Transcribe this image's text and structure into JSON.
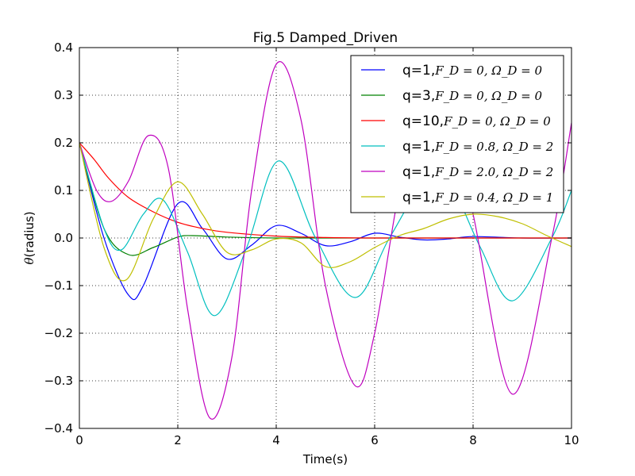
{
  "chart_data": {
    "type": "line",
    "title": "Fig.5 Damped_Driven",
    "xlabel": "Time(s)",
    "ylabel_symbol": "θ",
    "ylabel_text": "(radius)",
    "xlim": [
      0,
      10
    ],
    "ylim": [
      -0.4,
      0.4
    ],
    "xticks": [
      0,
      2,
      4,
      6,
      8,
      10
    ],
    "xtick_labels": [
      "0",
      "2",
      "4",
      "6",
      "8",
      "10"
    ],
    "yticks": [
      -0.4,
      -0.3,
      -0.2,
      -0.1,
      0.0,
      0.1,
      0.2,
      0.3,
      0.4
    ],
    "ytick_labels": [
      "−0.4",
      "−0.3",
      "−0.2",
      "−0.1",
      "0.0",
      "0.1",
      "0.2",
      "0.3",
      "0.4"
    ],
    "grid": true,
    "legend_position": "top-right",
    "series": [
      {
        "name": "q=1,F_D=0,Ω_D=0",
        "label_prefix": "q=1,",
        "label_math": "F_D = 0, Ω_D = 0",
        "color": "#0000ff",
        "x": [
          0,
          0.5,
          1.0,
          1.3,
          2.0,
          2.5,
          3.0,
          3.5,
          4.0,
          4.5,
          5.0,
          5.5,
          6.0,
          6.5,
          7.0,
          7.5,
          8.0,
          9.0,
          10.0
        ],
        "y": [
          0.2,
          0.0,
          -0.12,
          -0.1,
          0.072,
          0.02,
          -0.044,
          -0.015,
          0.026,
          0.01,
          -0.016,
          -0.008,
          0.01,
          0.002,
          -0.004,
          -0.002,
          0.003,
          0.0,
          0.0
        ]
      },
      {
        "name": "q=3,F_D=0,Ω_D=0",
        "label_prefix": "q=3,",
        "label_math": "F_D = 0, Ω_D = 0",
        "color": "#008000",
        "x": [
          0,
          0.5,
          1.0,
          1.5,
          2.0,
          2.3,
          3.0,
          4.0,
          5.0,
          10.0
        ],
        "y": [
          0.2,
          0.02,
          -0.035,
          -0.02,
          0.002,
          0.005,
          0.002,
          0.0,
          0.0,
          0.0
        ]
      },
      {
        "name": "q=10,F_D=0,Ω_D=0",
        "label_prefix": "q=10,",
        "label_math": "F_D = 0, Ω_D = 0",
        "color": "#ff0000",
        "x": [
          0,
          0.3,
          0.6,
          1.0,
          1.5,
          2.0,
          2.5,
          3.0,
          4.0,
          5.0,
          6.0,
          8.0,
          10.0
        ],
        "y": [
          0.2,
          0.165,
          0.125,
          0.085,
          0.055,
          0.033,
          0.02,
          0.012,
          0.004,
          0.001,
          0.0,
          0.0,
          0.0
        ]
      },
      {
        "name": "q=1,F_D=0.8,Ω_D=2",
        "label_prefix": "q=1,",
        "label_math": "F_D = 0.8, Ω_D = 2",
        "color": "#00bfbf",
        "x": [
          0,
          0.5,
          0.85,
          1.3,
          1.7,
          2.2,
          2.75,
          3.4,
          4.05,
          4.8,
          5.6,
          6.3,
          7.1,
          7.6,
          8.15,
          8.8,
          9.6,
          10.0
        ],
        "y": [
          0.2,
          0.02,
          -0.025,
          0.05,
          0.08,
          -0.03,
          -0.163,
          -0.02,
          0.162,
          0.0,
          -0.125,
          0.0,
          0.13,
          0.1,
          -0.02,
          -0.132,
          0.0,
          0.1
        ]
      },
      {
        "name": "q=1,F_D=2.0,Ω_D=2",
        "label_prefix": "q=1,",
        "label_math": "F_D = 2.0, Ω_D = 2",
        "color": "#bf00bf",
        "x": [
          0,
          0.35,
          0.65,
          1.0,
          1.4,
          1.8,
          2.2,
          2.65,
          3.1,
          3.5,
          4.0,
          4.5,
          5.0,
          5.6,
          6.0,
          6.5,
          7.0,
          7.5,
          8.0,
          8.8,
          9.6,
          10.0
        ],
        "y": [
          0.2,
          0.1,
          0.077,
          0.12,
          0.215,
          0.15,
          -0.15,
          -0.378,
          -0.25,
          0.1,
          0.365,
          0.25,
          -0.1,
          -0.31,
          -0.2,
          0.1,
          0.3,
          0.25,
          0.05,
          -0.328,
          0.0,
          0.242
        ]
      },
      {
        "name": "q=1,F_D=0.4,Ω_D=1",
        "label_prefix": "q=1,",
        "label_math": "F_D = 0.4, Ω_D = 1",
        "color": "#bfbf00",
        "x": [
          0,
          0.5,
          0.95,
          1.5,
          2.0,
          2.5,
          3.0,
          3.5,
          4.0,
          4.5,
          5.0,
          5.5,
          6.0,
          6.5,
          7.0,
          7.5,
          8.0,
          8.5,
          9.0,
          9.5,
          10.0
        ],
        "y": [
          0.2,
          -0.02,
          -0.088,
          0.04,
          0.118,
          0.05,
          -0.03,
          -0.025,
          -0.002,
          -0.01,
          -0.06,
          -0.05,
          -0.02,
          0.005,
          0.02,
          0.04,
          0.05,
          0.045,
          0.03,
          0.005,
          -0.018
        ]
      }
    ]
  }
}
